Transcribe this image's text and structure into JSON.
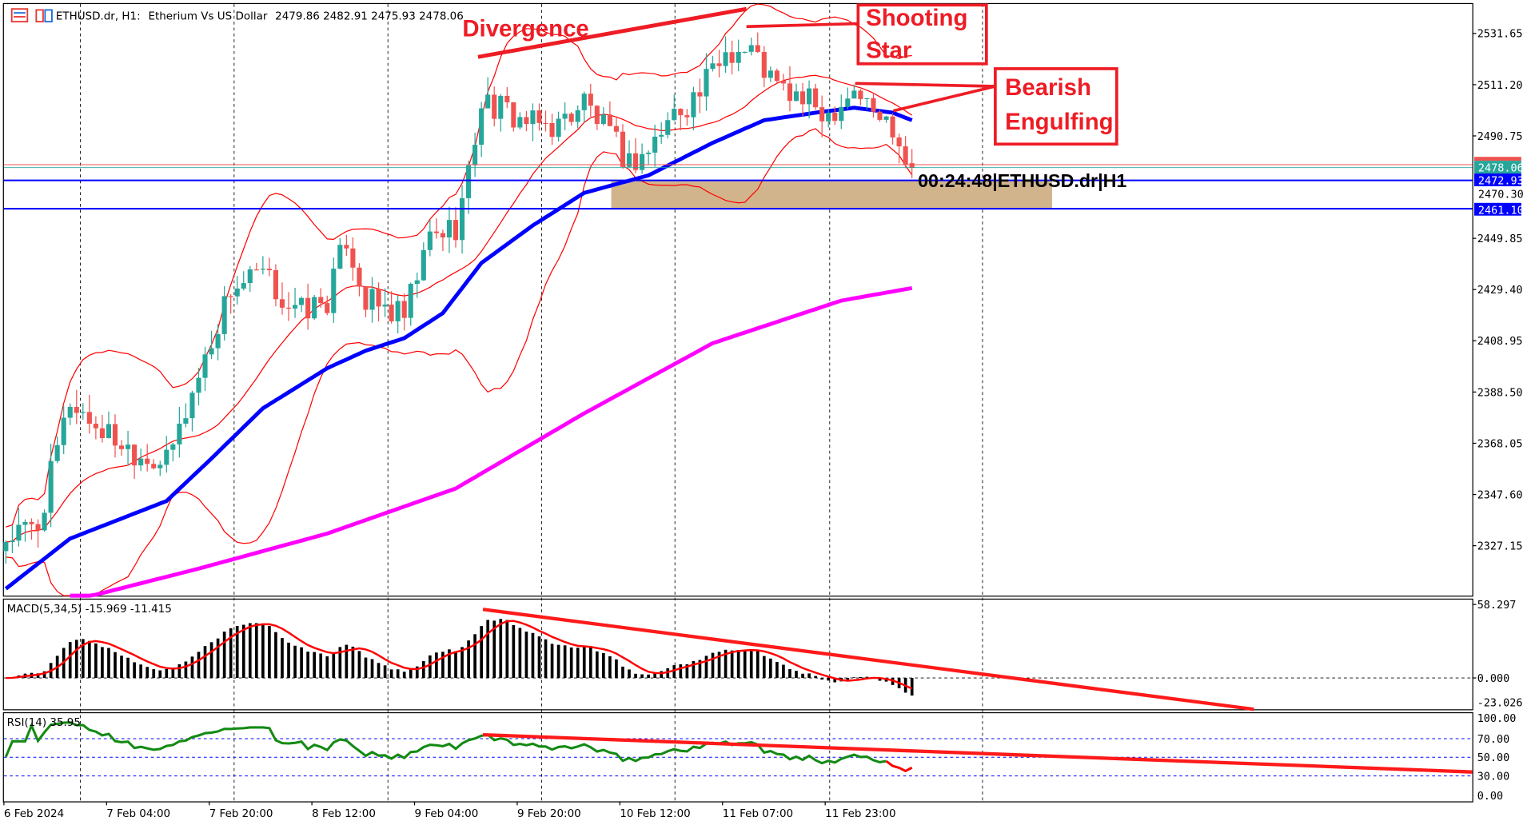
{
  "header": {
    "symbol": "ETHUSD.dr, H1:",
    "description": "Etherium Vs US Dollar",
    "ohlc": "2479.86 2482.91 2475.93 2478.06"
  },
  "annotations": {
    "divergence": "Divergence",
    "shooting_star_line1": "Shooting",
    "shooting_star_line2": "Star",
    "bearish_line1": "Bearish",
    "bearish_line2": "Engulfing",
    "timer": "00:24:48|ETHUSD.dr|H1"
  },
  "price_axis": [
    "2531.65",
    "2511.20",
    "2490.75",
    "2449.85",
    "2429.40",
    "2408.95",
    "2388.50",
    "2368.05",
    "2347.60",
    "2327.15"
  ],
  "price_tags": {
    "bid": "2478.06",
    "level_upper": "2472.93",
    "level_lower": "2461.10",
    "hidden": "2470.30"
  },
  "macd": {
    "label": "MACD(5,34,5) -15.969 -11.415",
    "axis": [
      "58.297",
      "0.000",
      "-23.026"
    ]
  },
  "rsi": {
    "label": "RSI(14) 35.95",
    "axis": [
      "100.00",
      "70.00",
      "50.00",
      "30.00",
      "0.00"
    ]
  },
  "time_axis": [
    "6 Feb 2024",
    "7 Feb 04:00",
    "7 Feb 20:00",
    "8 Feb 12:00",
    "9 Feb 04:00",
    "9 Feb 20:00",
    "10 Feb 12:00",
    "11 Feb 07:00",
    "11 Feb 23:00"
  ],
  "colors": {
    "bull": "#26A69A",
    "bear": "#EF5350",
    "ma_fast": "#0000FF",
    "ma_slow": "#FF00FF",
    "bands": "#FF0000",
    "rsi": "#138A13",
    "zone": "#D2B48C",
    "annotation": "#EE1C25"
  },
  "chart_data": {
    "type": "candlestick",
    "timeframe": "H1",
    "ylim": [
      2306.7,
      2548
    ],
    "close_keypoints": [
      [
        0,
        2330
      ],
      [
        5,
        2335
      ],
      [
        10,
        2385
      ],
      [
        14,
        2375
      ],
      [
        20,
        2365
      ],
      [
        25,
        2360
      ],
      [
        30,
        2395
      ],
      [
        35,
        2430
      ],
      [
        40,
        2435
      ],
      [
        45,
        2420
      ],
      [
        50,
        2425
      ],
      [
        53,
        2450
      ],
      [
        56,
        2425
      ],
      [
        62,
        2418
      ],
      [
        66,
        2450
      ],
      [
        70,
        2455
      ],
      [
        72,
        2475
      ],
      [
        74,
        2505
      ],
      [
        78,
        2500
      ],
      [
        82,
        2495
      ],
      [
        86,
        2495
      ],
      [
        90,
        2505
      ],
      [
        94,
        2490
      ],
      [
        97,
        2480
      ],
      [
        100,
        2485
      ],
      [
        104,
        2500
      ],
      [
        108,
        2508
      ],
      [
        112,
        2525
      ],
      [
        116,
        2525
      ],
      [
        120,
        2510
      ],
      [
        124,
        2505
      ],
      [
        128,
        2500
      ],
      [
        132,
        2510
      ],
      [
        135,
        2500
      ],
      [
        138,
        2495
      ],
      [
        141,
        2478
      ]
    ],
    "ma_fast_keypoints": [
      [
        0,
        2310
      ],
      [
        10,
        2330
      ],
      [
        25,
        2345
      ],
      [
        32,
        2362
      ],
      [
        40,
        2382
      ],
      [
        50,
        2398
      ],
      [
        56,
        2405
      ],
      [
        62,
        2410
      ],
      [
        68,
        2420
      ],
      [
        74,
        2440
      ],
      [
        82,
        2455
      ],
      [
        90,
        2468
      ],
      [
        100,
        2475
      ],
      [
        110,
        2488
      ],
      [
        118,
        2497
      ],
      [
        126,
        2500
      ],
      [
        132,
        2502
      ],
      [
        138,
        2500
      ],
      [
        141,
        2497
      ]
    ],
    "ma_slow_keypoints": [
      [
        10,
        2305
      ],
      [
        30,
        2318
      ],
      [
        50,
        2332
      ],
      [
        70,
        2350
      ],
      [
        90,
        2380
      ],
      [
        110,
        2408
      ],
      [
        130,
        2425
      ],
      [
        141,
        2430
      ]
    ],
    "support_zone": [
      2461.1,
      2472.93
    ]
  }
}
